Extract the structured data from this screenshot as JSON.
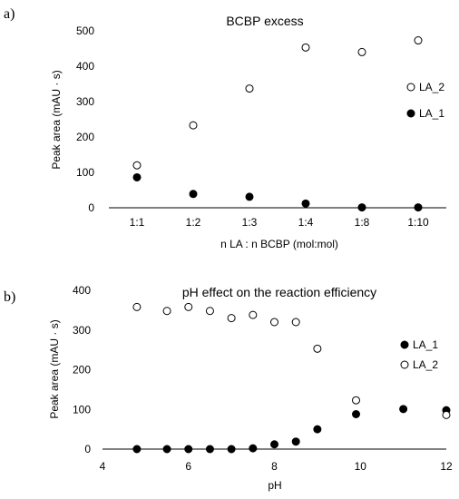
{
  "panels": [
    {
      "letter": "a)"
    },
    {
      "letter": "b)"
    }
  ],
  "chart_data": [
    {
      "type": "scatter",
      "title": "BCBP excess",
      "xlabel": "n LA : n BCBP (mol:mol)",
      "ylabel": "Peak area (mAU · s)",
      "categories": [
        "1:1",
        "1:2",
        "1:3",
        "1:4",
        "1:8",
        "1:10"
      ],
      "ylim": [
        0,
        500
      ],
      "yticks": [
        0,
        100,
        200,
        300,
        400,
        500
      ],
      "legend_position": "right",
      "series": [
        {
          "name": "LA_2",
          "marker": "open-circle",
          "values": [
            120,
            233,
            337,
            453,
            440,
            473
          ]
        },
        {
          "name": "LA_1",
          "marker": "filled-circle",
          "values": [
            86,
            39,
            31,
            12,
            1,
            1
          ]
        }
      ]
    },
    {
      "type": "scatter",
      "title": "pH effect on the reaction efficiency",
      "xlabel": "pH",
      "ylabel": "Peak area  (mAU · s)",
      "xlim": [
        4,
        12
      ],
      "xticks": [
        4,
        6,
        8,
        10,
        12
      ],
      "ylim": [
        0,
        400
      ],
      "yticks": [
        0,
        100,
        200,
        300,
        400
      ],
      "legend_position": "right",
      "series": [
        {
          "name": "LA_1",
          "marker": "filled-circle",
          "x": [
            4.8,
            5.5,
            6.0,
            6.5,
            7.0,
            7.5,
            8.0,
            8.5,
            9.0,
            9.9,
            11.0,
            12.0
          ],
          "y": [
            0,
            0,
            0,
            0,
            0,
            2,
            12,
            19,
            50,
            88,
            101,
            98
          ]
        },
        {
          "name": "LA_2",
          "marker": "open-circle",
          "x": [
            4.8,
            5.5,
            6.0,
            6.5,
            7.0,
            7.5,
            8.0,
            8.5,
            9.0,
            9.9,
            12.0
          ],
          "y": [
            358,
            348,
            358,
            348,
            330,
            338,
            320,
            320,
            253,
            123,
            86
          ]
        }
      ]
    }
  ]
}
